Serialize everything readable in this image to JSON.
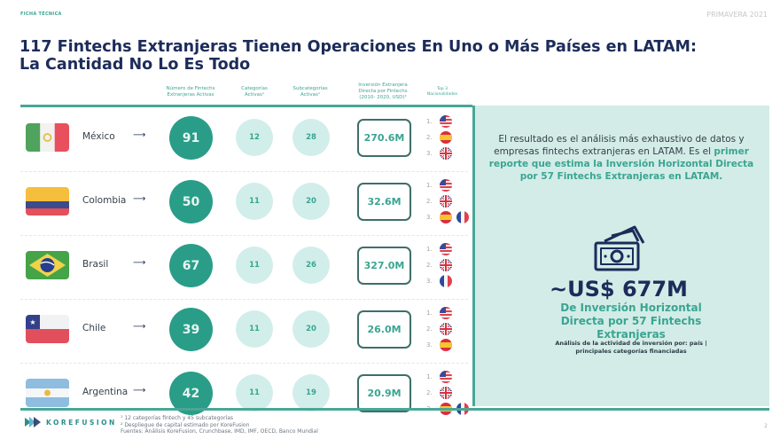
{
  "header": {
    "eyebrow": "FICHA TÉCNICA",
    "season": "PRIMAVERA 2021",
    "title_line1": "117 Fintechs Extranjeras Tienen Operaciones En Uno o Más Países en LATAM:",
    "title_line2": "La Cantidad No Lo Es Todo"
  },
  "columns": {
    "fintechs": [
      "Número de Fintechs",
      "Extranjeras Activas"
    ],
    "categories": [
      "Categorías",
      "Activas¹"
    ],
    "subcategories": [
      "Subcategorías",
      "Activas¹"
    ],
    "investment": [
      "Inversión Extranjera",
      "Directa por Fintechs",
      "(2010- 2020, USD)²"
    ],
    "nationalities": [
      "Top 3",
      "Nacionalidades"
    ]
  },
  "rows": [
    {
      "country": "México",
      "arrow": "⟶",
      "fintechs": "91",
      "categories": "12",
      "subcategories": "28",
      "investment": "270.6M",
      "top3": [
        [
          "us"
        ],
        [
          "es"
        ],
        [
          "uk"
        ]
      ],
      "ranks": [
        "1.",
        "2.",
        "3."
      ]
    },
    {
      "country": "Colombia",
      "arrow": "⟶",
      "fintechs": "50",
      "categories": "11",
      "subcategories": "20",
      "investment": "32.6M",
      "top3": [
        [
          "us"
        ],
        [
          "uk"
        ],
        [
          "es",
          "fr"
        ]
      ],
      "ranks": [
        "1.",
        "2.",
        "3."
      ]
    },
    {
      "country": "Brasil",
      "arrow": "⟶",
      "fintechs": "67",
      "categories": "11",
      "subcategories": "26",
      "investment": "327.0M",
      "top3": [
        [
          "us"
        ],
        [
          "uk"
        ],
        [
          "fr"
        ]
      ],
      "ranks": [
        "1.",
        "2.",
        "3."
      ]
    },
    {
      "country": "Chile",
      "arrow": "⟶",
      "fintechs": "39",
      "categories": "11",
      "subcategories": "20",
      "investment": "26.0M",
      "top3": [
        [
          "us"
        ],
        [
          "uk"
        ],
        [
          "es"
        ]
      ],
      "ranks": [
        "1.",
        "2.",
        "3."
      ]
    },
    {
      "country": "Argentina",
      "arrow": "⟶",
      "fintechs": "42",
      "categories": "11",
      "subcategories": "19",
      "investment": "20.9M",
      "top3": [
        [
          "us"
        ],
        [
          "uk"
        ],
        [
          "es",
          "fr"
        ]
      ],
      "ranks": [
        "1.",
        "2.",
        "3."
      ]
    }
  ],
  "panel": {
    "text_plain": "El resultado es el análisis más exhaustivo de datos y empresas fintechs extranjeras en LATAM. Es el",
    "text_highlight": "primer reporte que estima la Inversión Horizontal Directa por 57 Fintechs Extranjeras en LATAM.",
    "icon": "money-icon",
    "amount": "~US$ 677M",
    "amount_caption": "De Inversión Horizontal Directa por 57 Fintechs Extranjeras",
    "note": "Análisis de la actividad de inversión por: país | principales categorías financiadas"
  },
  "footer": {
    "logo": "KOREFUSION",
    "note1": "¹ 12 categorías fintech y 45 subcategorías",
    "note2": "² Despliegue de capital estimado por KoreFusion",
    "sources": "Fuentes: Análisis KoreFusion, Crunchbase, IMD, IMF, OECD, Banco Mundial",
    "page": "2"
  },
  "colors": {
    "teal": "#2a9d89",
    "mint": "#d3ece7",
    "navy": "#1c2c5a"
  }
}
